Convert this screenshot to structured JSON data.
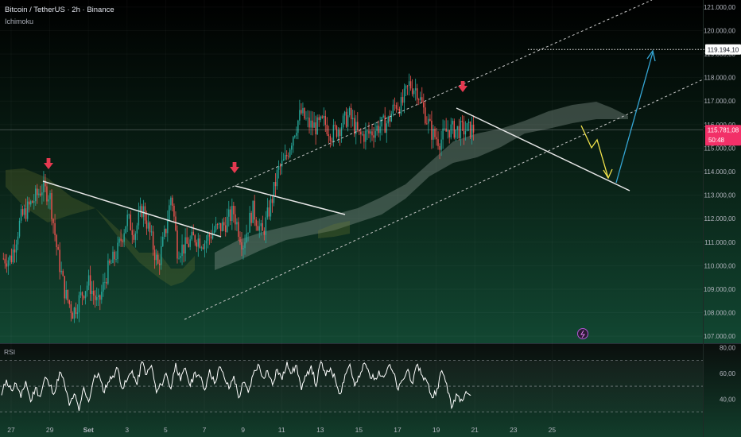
{
  "header": {
    "title": "Bitcoin / TetherUS · 2h · Binance",
    "indicator": "Ichimoku"
  },
  "rsi_label": "RSI",
  "colors": {
    "background": "#0b1713",
    "up_candle": "#26a69a",
    "down_candle": "#ef5350",
    "arrow_red": "#e53950",
    "trend_line": "#e6e6e6",
    "channel": "#c8c8c8",
    "projection_yellow": "#f2e34b",
    "projection_blue": "#35a7d6",
    "current_price_tag": "#f23068",
    "rsi_line": "#ffffff"
  },
  "chart_data": [
    {
      "type": "candlestick",
      "title": "Bitcoin / TetherUS · 2h · Binance",
      "y_axis_ticks": [
        "121.000,00",
        "120.000,00",
        "119.000,00",
        "118.000,00",
        "117.000,00",
        "116.000,00",
        "115.000,00",
        "114.000,00",
        "113.000,00",
        "112.000,00",
        "111.000,00",
        "110.000,00",
        "109.000,00",
        "108.000,00",
        "107.000,00"
      ],
      "ylim": [
        106700,
        121300
      ],
      "x_axis_ticks": [
        "27",
        "29",
        "Set",
        "3",
        "5",
        "7",
        "9",
        "11",
        "13",
        "15",
        "17",
        "19",
        "21",
        "23",
        "25"
      ],
      "target_label": "119.194,10",
      "target_value": 119194.1,
      "current_price": {
        "label": "115.781,08",
        "countdown": "50:48",
        "value": 115781.08
      },
      "candle_anchors": {
        "x_days": [
          27,
          27.5,
          28,
          28.6,
          29,
          29.4,
          29.8,
          30.2,
          30.6,
          31,
          31.5,
          32,
          32.5,
          33,
          33.4,
          33.8,
          34.2,
          34.6,
          35,
          35.3,
          35.6,
          36,
          36.5,
          37,
          37.5,
          38,
          38.5,
          39,
          39.5,
          40,
          40.5,
          40.8,
          41.2,
          41.6,
          42,
          42.4,
          42.8,
          43.2,
          43.6,
          44,
          44.5,
          45,
          45.5,
          46,
          46.5,
          46.9,
          47.2,
          47.6,
          48,
          48.4,
          48.8,
          49.2,
          49.6,
          50,
          50.4,
          50.8,
          51.2,
          51.6
        ],
        "close": [
          110300,
          112000,
          112600,
          113300,
          113000,
          110500,
          108800,
          108000,
          108700,
          109300,
          108300,
          109800,
          110600,
          112000,
          111400,
          112500,
          111300,
          110000,
          111500,
          113100,
          110700,
          110800,
          111200,
          111000,
          111500,
          111700,
          112300,
          110900,
          112400,
          111300,
          112800,
          114000,
          114500,
          115600,
          116500,
          116000,
          115900,
          116100,
          115600,
          115900,
          116400,
          115500,
          115600,
          115900,
          116100,
          116900,
          116800,
          117700,
          117500,
          116500,
          115600,
          115300,
          115800,
          115781,
          115781,
          115781,
          115781,
          115781
        ],
        "spread": 500
      }
    },
    {
      "type": "line",
      "title": "RSI",
      "y_axis_ticks": [
        "80,00",
        "60,00",
        "40,00"
      ],
      "ylim": [
        23,
        82
      ],
      "guide_levels": [
        70,
        50,
        30
      ],
      "series": [
        {
          "values": [
            43,
            55,
            47,
            52,
            41,
            54,
            38,
            49,
            42,
            57,
            50,
            45,
            61,
            52,
            35,
            44,
            31,
            49,
            38,
            55,
            60,
            46,
            53,
            58,
            64,
            48,
            55,
            62,
            51,
            69,
            59,
            66,
            45,
            51,
            60,
            48,
            68,
            54,
            64,
            50,
            61,
            57,
            47,
            63,
            52,
            65,
            57,
            48,
            58,
            41,
            53,
            45,
            59,
            67,
            57,
            62,
            51,
            63,
            55,
            69,
            60,
            66,
            47,
            58,
            66,
            50,
            69,
            58,
            64,
            55,
            44,
            59,
            67,
            50,
            57,
            68,
            60,
            55,
            62,
            57,
            66,
            60,
            47,
            55,
            63,
            52,
            67,
            58,
            53,
            41,
            48,
            62,
            52,
            33,
            44,
            40,
            46,
            43
          ]
        }
      ]
    }
  ]
}
